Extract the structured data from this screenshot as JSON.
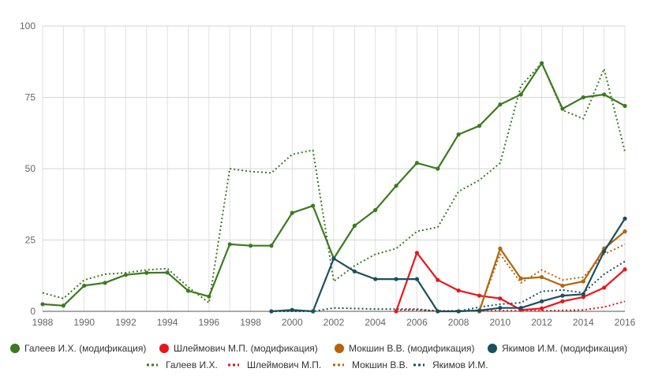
{
  "chart_data": {
    "type": "line",
    "title": "",
    "xlabel": "",
    "ylabel": "",
    "xlim": [
      1988,
      2016
    ],
    "ylim": [
      0,
      100
    ],
    "x_ticks": [
      "1988",
      "1990",
      "1992",
      "1994",
      "1996",
      "1998",
      "2000",
      "2002",
      "2004",
      "2006",
      "2008",
      "2010",
      "2012",
      "2014",
      "2016"
    ],
    "y_ticks": [
      "0",
      "25",
      "50",
      "75",
      "100"
    ],
    "grid": true,
    "legend_position": "bottom",
    "series": [
      {
        "name": "Галеев И.Х. (модификация)",
        "color": "#3c7a1f",
        "style": "solid",
        "markers": true,
        "points": [
          [
            1988,
            2.5
          ],
          [
            1989,
            2
          ],
          [
            1990,
            9
          ],
          [
            1991,
            10
          ],
          [
            1992,
            12.8
          ],
          [
            1993,
            13.5
          ],
          [
            1994,
            13.6
          ],
          [
            1995,
            7.2
          ],
          [
            1996,
            5.2
          ],
          [
            1997,
            23.5
          ],
          [
            1998,
            23
          ],
          [
            1999,
            23
          ],
          [
            2000,
            34.5
          ],
          [
            2001,
            37
          ],
          [
            2002,
            18.5
          ],
          [
            2003,
            30
          ],
          [
            2004,
            35.5
          ],
          [
            2005,
            44
          ],
          [
            2006,
            52
          ],
          [
            2007,
            50
          ],
          [
            2008,
            62
          ],
          [
            2009,
            65
          ],
          [
            2010,
            72.5
          ],
          [
            2011,
            76
          ],
          [
            2012,
            87
          ],
          [
            2013,
            71
          ],
          [
            2014,
            75
          ],
          [
            2015,
            76
          ],
          [
            2016,
            72
          ]
        ]
      },
      {
        "name": "Шлеймович М.П. (модификация)",
        "color": "#e8161b",
        "style": "solid",
        "markers": true,
        "points": [
          [
            2005,
            0
          ],
          [
            2006,
            20.5
          ],
          [
            2007,
            11
          ],
          [
            2008,
            7.3
          ],
          [
            2009,
            5.5
          ],
          [
            2010,
            4.5
          ],
          [
            2011,
            0.5
          ],
          [
            2012,
            1
          ],
          [
            2013,
            3.5
          ],
          [
            2014,
            5
          ],
          [
            2015,
            8.3
          ],
          [
            2016,
            14.7
          ]
        ]
      },
      {
        "name": "Мокшин В.В. (модификация)",
        "color": "#b3650d",
        "style": "solid",
        "markers": true,
        "points": [
          [
            2009,
            0
          ],
          [
            2010,
            22
          ],
          [
            2011,
            11.5
          ],
          [
            2012,
            12
          ],
          [
            2013,
            9
          ],
          [
            2014,
            10.5
          ],
          [
            2015,
            22
          ],
          [
            2016,
            28
          ]
        ]
      },
      {
        "name": "Якимов И.М. (модификация)",
        "color": "#1a4f5c",
        "style": "solid",
        "markers": true,
        "points": [
          [
            1999,
            0
          ],
          [
            2000,
            0.5
          ],
          [
            2001,
            0
          ],
          [
            2002,
            18.5
          ],
          [
            2003,
            14
          ],
          [
            2004,
            11.3
          ],
          [
            2005,
            11.3
          ],
          [
            2006,
            11.3
          ],
          [
            2007,
            0
          ],
          [
            2008,
            0
          ],
          [
            2009,
            0.3
          ],
          [
            2010,
            1.2
          ],
          [
            2011,
            1.2
          ],
          [
            2012,
            3.5
          ],
          [
            2013,
            5.5
          ],
          [
            2014,
            6
          ],
          [
            2015,
            21
          ],
          [
            2016,
            32.5
          ]
        ]
      },
      {
        "name": "Галеев И.Х.",
        "color": "#3c7a1f",
        "style": "dotted",
        "markers": false,
        "points": [
          [
            1988,
            6.5
          ],
          [
            1989,
            4.5
          ],
          [
            1990,
            11
          ],
          [
            1991,
            13
          ],
          [
            1992,
            13.5
          ],
          [
            1993,
            14.5
          ],
          [
            1994,
            15
          ],
          [
            1995,
            8.5
          ],
          [
            1996,
            3
          ],
          [
            1997,
            50
          ],
          [
            1998,
            49
          ],
          [
            1999,
            48.5
          ],
          [
            2000,
            55
          ],
          [
            2001,
            56.5
          ],
          [
            2002,
            10.5
          ],
          [
            2003,
            16
          ],
          [
            2004,
            20
          ],
          [
            2005,
            22
          ],
          [
            2006,
            28
          ],
          [
            2007,
            29.5
          ],
          [
            2008,
            42
          ],
          [
            2009,
            46
          ],
          [
            2010,
            52
          ],
          [
            2011,
            79
          ],
          [
            2012,
            87
          ],
          [
            2013,
            70.5
          ],
          [
            2014,
            67.5
          ],
          [
            2015,
            85
          ],
          [
            2016,
            56
          ]
        ]
      },
      {
        "name": "Шлеймович М.П.",
        "color": "#e8161b",
        "style": "dotted",
        "markers": false,
        "points": [
          [
            2005,
            0.5
          ],
          [
            2006,
            0.5
          ],
          [
            2007,
            0.2
          ],
          [
            2008,
            0.2
          ],
          [
            2009,
            0.2
          ],
          [
            2010,
            0.2
          ],
          [
            2011,
            0.2
          ],
          [
            2012,
            0.2
          ],
          [
            2013,
            0.3
          ],
          [
            2014,
            0.5
          ],
          [
            2015,
            1.5
          ],
          [
            2016,
            3.5
          ]
        ]
      },
      {
        "name": "Мокшин В.В.",
        "color": "#b3650d",
        "style": "dotted",
        "markers": false,
        "points": [
          [
            2009,
            0.5
          ],
          [
            2010,
            20
          ],
          [
            2011,
            10
          ],
          [
            2012,
            14.5
          ],
          [
            2013,
            11
          ],
          [
            2014,
            12
          ],
          [
            2015,
            20
          ],
          [
            2016,
            23.5
          ]
        ]
      },
      {
        "name": "Якимов И.М.",
        "color": "#1a4f5c",
        "style": "dotted",
        "markers": false,
        "points": [
          [
            1999,
            0
          ],
          [
            2000,
            0
          ],
          [
            2001,
            0
          ],
          [
            2002,
            1.2
          ],
          [
            2003,
            1
          ],
          [
            2004,
            0.8
          ],
          [
            2005,
            0.8
          ],
          [
            2006,
            0.8
          ],
          [
            2007,
            0
          ],
          [
            2008,
            0
          ],
          [
            2009,
            1.5
          ],
          [
            2010,
            2.5
          ],
          [
            2011,
            3
          ],
          [
            2012,
            7
          ],
          [
            2013,
            7.5
          ],
          [
            2014,
            6.5
          ],
          [
            2015,
            13
          ],
          [
            2016,
            17.5
          ]
        ]
      }
    ]
  }
}
